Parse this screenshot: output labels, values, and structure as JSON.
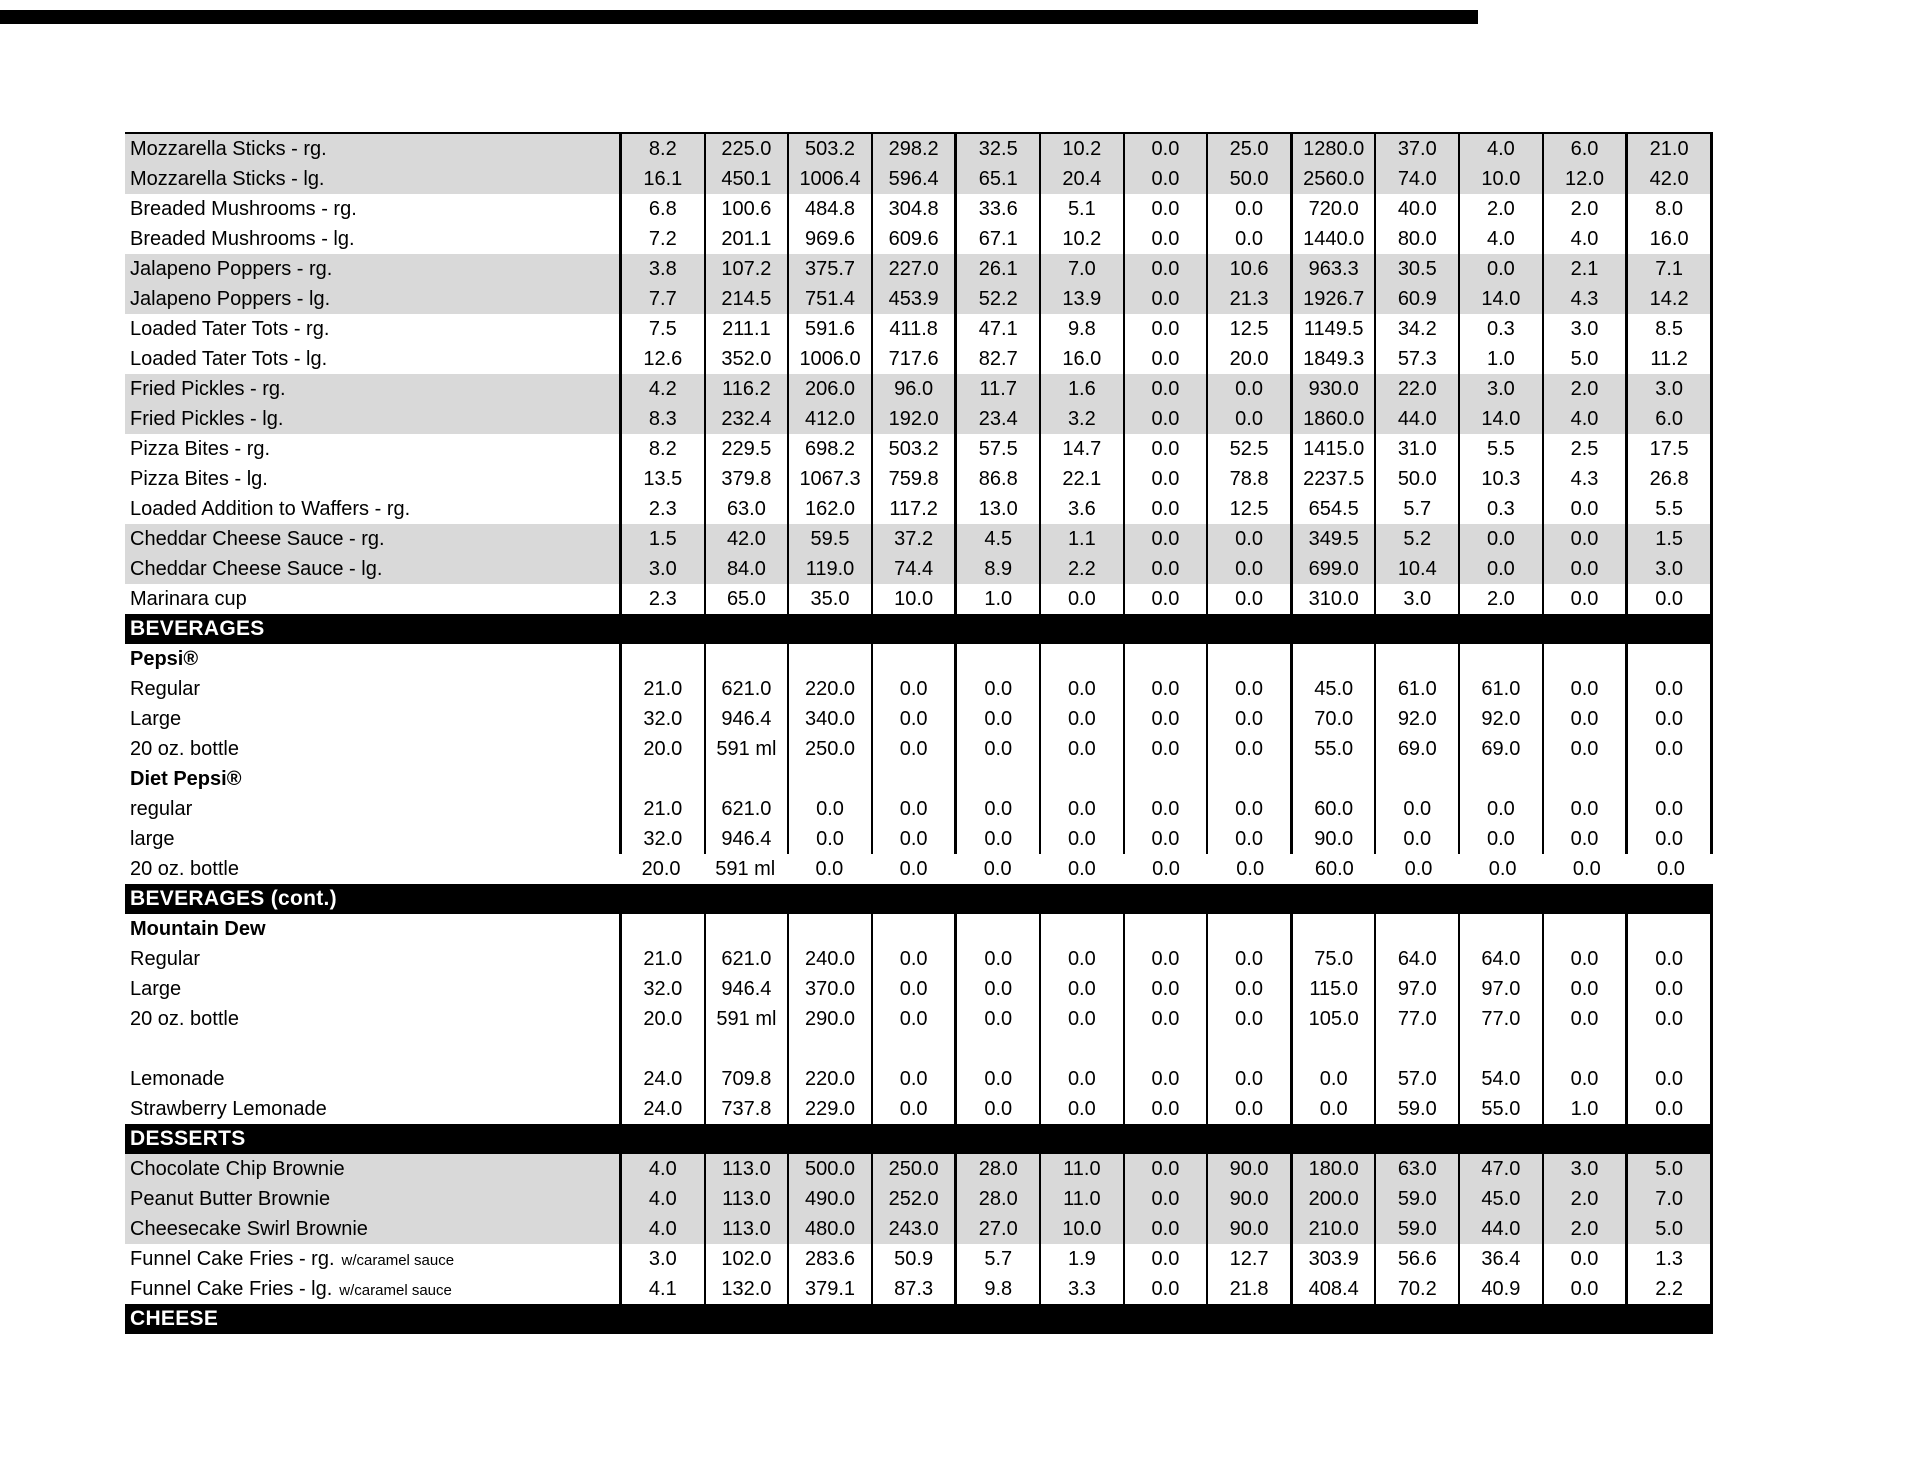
{
  "document": {
    "shade_color": "#d9d9d9",
    "section_header_bg": "#000000",
    "section_header_fg": "#ffffff",
    "top_cutoff_bar_present": true
  },
  "table": {
    "columns_count": 13,
    "rows": [
      {
        "type": "item",
        "name": "Mozzarella Sticks - rg.",
        "shaded": true,
        "cells": [
          "8.2",
          "225.0",
          "503.2",
          "298.2",
          "32.5",
          "10.2",
          "0.0",
          "25.0",
          "1280.0",
          "37.0",
          "4.0",
          "6.0",
          "21.0"
        ]
      },
      {
        "type": "item",
        "name": "Mozzarella Sticks - lg.",
        "shaded": true,
        "cells": [
          "16.1",
          "450.1",
          "1006.4",
          "596.4",
          "65.1",
          "20.4",
          "0.0",
          "50.0",
          "2560.0",
          "74.0",
          "10.0",
          "12.0",
          "42.0"
        ]
      },
      {
        "type": "item",
        "name": "Breaded Mushrooms - rg.",
        "shaded": false,
        "cells": [
          "6.8",
          "100.6",
          "484.8",
          "304.8",
          "33.6",
          "5.1",
          "0.0",
          "0.0",
          "720.0",
          "40.0",
          "2.0",
          "2.0",
          "8.0"
        ]
      },
      {
        "type": "item",
        "name": "Breaded Mushrooms - lg.",
        "shaded": false,
        "cells": [
          "7.2",
          "201.1",
          "969.6",
          "609.6",
          "67.1",
          "10.2",
          "0.0",
          "0.0",
          "1440.0",
          "80.0",
          "4.0",
          "4.0",
          "16.0"
        ]
      },
      {
        "type": "item",
        "name": "Jalapeno Poppers - rg.",
        "shaded": true,
        "cells": [
          "3.8",
          "107.2",
          "375.7",
          "227.0",
          "26.1",
          "7.0",
          "0.0",
          "10.6",
          "963.3",
          "30.5",
          "0.0",
          "2.1",
          "7.1"
        ]
      },
      {
        "type": "item",
        "name": "Jalapeno Poppers - lg.",
        "shaded": true,
        "cells": [
          "7.7",
          "214.5",
          "751.4",
          "453.9",
          "52.2",
          "13.9",
          "0.0",
          "21.3",
          "1926.7",
          "60.9",
          "14.0",
          "4.3",
          "14.2"
        ]
      },
      {
        "type": "item",
        "name": "Loaded Tater Tots - rg.",
        "shaded": false,
        "cells": [
          "7.5",
          "211.1",
          "591.6",
          "411.8",
          "47.1",
          "9.8",
          "0.0",
          "12.5",
          "1149.5",
          "34.2",
          "0.3",
          "3.0",
          "8.5"
        ]
      },
      {
        "type": "item",
        "name": "Loaded Tater Tots - lg.",
        "shaded": false,
        "cells": [
          "12.6",
          "352.0",
          "1006.0",
          "717.6",
          "82.7",
          "16.0",
          "0.0",
          "20.0",
          "1849.3",
          "57.3",
          "1.0",
          "5.0",
          "11.2"
        ]
      },
      {
        "type": "item",
        "name": "Fried Pickles - rg.",
        "shaded": true,
        "cells": [
          "4.2",
          "116.2",
          "206.0",
          "96.0",
          "11.7",
          "1.6",
          "0.0",
          "0.0",
          "930.0",
          "22.0",
          "3.0",
          "2.0",
          "3.0"
        ]
      },
      {
        "type": "item",
        "name": "Fried Pickles - lg.",
        "shaded": true,
        "cells": [
          "8.3",
          "232.4",
          "412.0",
          "192.0",
          "23.4",
          "3.2",
          "0.0",
          "0.0",
          "1860.0",
          "44.0",
          "14.0",
          "4.0",
          "6.0"
        ]
      },
      {
        "type": "item",
        "name": "Pizza Bites - rg.",
        "shaded": false,
        "cells": [
          "8.2",
          "229.5",
          "698.2",
          "503.2",
          "57.5",
          "14.7",
          "0.0",
          "52.5",
          "1415.0",
          "31.0",
          "5.5",
          "2.5",
          "17.5"
        ]
      },
      {
        "type": "item",
        "name": "Pizza Bites - lg.",
        "shaded": false,
        "cells": [
          "13.5",
          "379.8",
          "1067.3",
          "759.8",
          "86.8",
          "22.1",
          "0.0",
          "78.8",
          "2237.5",
          "50.0",
          "10.3",
          "4.3",
          "26.8"
        ]
      },
      {
        "type": "item",
        "name": "Loaded Addition to Waffers - rg.",
        "shaded": false,
        "cells": [
          "2.3",
          "63.0",
          "162.0",
          "117.2",
          "13.0",
          "3.6",
          "0.0",
          "12.5",
          "654.5",
          "5.7",
          "0.3",
          "0.0",
          "5.5"
        ]
      },
      {
        "type": "item",
        "name": "Cheddar Cheese Sauce - rg.",
        "shaded": true,
        "cells": [
          "1.5",
          "42.0",
          "59.5",
          "37.2",
          "4.5",
          "1.1",
          "0.0",
          "0.0",
          "349.5",
          "5.2",
          "0.0",
          "0.0",
          "1.5"
        ]
      },
      {
        "type": "item",
        "name": "Cheddar Cheese Sauce - lg.",
        "shaded": true,
        "cells": [
          "3.0",
          "84.0",
          "119.0",
          "74.4",
          "8.9",
          "2.2",
          "0.0",
          "0.0",
          "699.0",
          "10.4",
          "0.0",
          "0.0",
          "3.0"
        ]
      },
      {
        "type": "item",
        "name": "Marinara cup",
        "shaded": false,
        "cells": [
          "2.3",
          "65.0",
          "35.0",
          "10.0",
          "1.0",
          "0.0",
          "0.0",
          "0.0",
          "310.0",
          "3.0",
          "2.0",
          "0.0",
          "0.0"
        ]
      },
      {
        "type": "section",
        "label": "BEVERAGES"
      },
      {
        "type": "subheader",
        "name": "Pepsi®"
      },
      {
        "type": "item",
        "name": "Regular",
        "shaded": false,
        "cells": [
          "21.0",
          "621.0",
          "220.0",
          "0.0",
          "0.0",
          "0.0",
          "0.0",
          "0.0",
          "45.0",
          "61.0",
          "61.0",
          "0.0",
          "0.0"
        ]
      },
      {
        "type": "item",
        "name": "Large",
        "shaded": false,
        "cells": [
          "32.0",
          "946.4",
          "340.0",
          "0.0",
          "0.0",
          "0.0",
          "0.0",
          "0.0",
          "70.0",
          "92.0",
          "92.0",
          "0.0",
          "0.0"
        ]
      },
      {
        "type": "item",
        "name": "20 oz. bottle",
        "shaded": false,
        "cells": [
          "20.0",
          "591 ml",
          "250.0",
          "0.0",
          "0.0",
          "0.0",
          "0.0",
          "0.0",
          "55.0",
          "69.0",
          "69.0",
          "0.0",
          "0.0"
        ]
      },
      {
        "type": "subheader",
        "name": "Diet Pepsi®"
      },
      {
        "type": "item",
        "name": "regular",
        "shaded": false,
        "cells": [
          "21.0",
          "621.0",
          "0.0",
          "0.0",
          "0.0",
          "0.0",
          "0.0",
          "0.0",
          "60.0",
          "0.0",
          "0.0",
          "0.0",
          "0.0"
        ]
      },
      {
        "type": "item",
        "name": "large",
        "shaded": false,
        "cells": [
          "32.0",
          "946.4",
          "0.0",
          "0.0",
          "0.0",
          "0.0",
          "0.0",
          "0.0",
          "90.0",
          "0.0",
          "0.0",
          "0.0",
          "0.0"
        ]
      },
      {
        "type": "item",
        "name": "20 oz. bottle",
        "shaded": false,
        "borderless": true,
        "cells": [
          "20.0",
          "591 ml",
          "0.0",
          "0.0",
          "0.0",
          "0.0",
          "0.0",
          "0.0",
          "60.0",
          "0.0",
          "0.0",
          "0.0",
          "0.0"
        ]
      },
      {
        "type": "section",
        "label": "BEVERAGES (cont.)"
      },
      {
        "type": "subheader",
        "name": "Mountain Dew"
      },
      {
        "type": "item",
        "name": "Regular",
        "shaded": false,
        "cells": [
          "21.0",
          "621.0",
          "240.0",
          "0.0",
          "0.0",
          "0.0",
          "0.0",
          "0.0",
          "75.0",
          "64.0",
          "64.0",
          "0.0",
          "0.0"
        ]
      },
      {
        "type": "item",
        "name": "Large",
        "shaded": false,
        "cells": [
          "32.0",
          "946.4",
          "370.0",
          "0.0",
          "0.0",
          "0.0",
          "0.0",
          "0.0",
          "115.0",
          "97.0",
          "97.0",
          "0.0",
          "0.0"
        ]
      },
      {
        "type": "item",
        "name": "20 oz. bottle",
        "shaded": false,
        "cells": [
          "20.0",
          "591 ml",
          "290.0",
          "0.0",
          "0.0",
          "0.0",
          "0.0",
          "0.0",
          "105.0",
          "77.0",
          "77.0",
          "0.0",
          "0.0"
        ]
      },
      {
        "type": "blank"
      },
      {
        "type": "item",
        "name": "Lemonade",
        "shaded": false,
        "cells": [
          "24.0",
          "709.8",
          "220.0",
          "0.0",
          "0.0",
          "0.0",
          "0.0",
          "0.0",
          "0.0",
          "57.0",
          "54.0",
          "0.0",
          "0.0"
        ]
      },
      {
        "type": "item",
        "name": "Strawberry Lemonade",
        "shaded": false,
        "cells": [
          "24.0",
          "737.8",
          "229.0",
          "0.0",
          "0.0",
          "0.0",
          "0.0",
          "0.0",
          "0.0",
          "59.0",
          "55.0",
          "1.0",
          "0.0"
        ]
      },
      {
        "type": "section",
        "label": "DESSERTS"
      },
      {
        "type": "item",
        "name": "Chocolate Chip Brownie",
        "shaded": true,
        "cells": [
          "4.0",
          "113.0",
          "500.0",
          "250.0",
          "28.0",
          "11.0",
          "0.0",
          "90.0",
          "180.0",
          "63.0",
          "47.0",
          "3.0",
          "5.0"
        ]
      },
      {
        "type": "item",
        "name": "Peanut Butter Brownie",
        "shaded": true,
        "cells": [
          "4.0",
          "113.0",
          "490.0",
          "252.0",
          "28.0",
          "11.0",
          "0.0",
          "90.0",
          "200.0",
          "59.0",
          "45.0",
          "2.0",
          "7.0"
        ]
      },
      {
        "type": "item",
        "name": "Cheesecake Swirl Brownie",
        "shaded": true,
        "cells": [
          "4.0",
          "113.0",
          "480.0",
          "243.0",
          "27.0",
          "10.0",
          "0.0",
          "90.0",
          "210.0",
          "59.0",
          "44.0",
          "2.0",
          "5.0"
        ]
      },
      {
        "type": "item",
        "name": "Funnel Cake Fries - rg.",
        "suffix": "w/caramel sauce",
        "shaded": false,
        "cells": [
          "3.0",
          "102.0",
          "283.6",
          "50.9",
          "5.7",
          "1.9",
          "0.0",
          "12.7",
          "303.9",
          "56.6",
          "36.4",
          "0.0",
          "1.3"
        ]
      },
      {
        "type": "item",
        "name": "Funnel Cake Fries - lg.",
        "suffix": "w/caramel sauce",
        "shaded": false,
        "cells": [
          "4.1",
          "132.0",
          "379.1",
          "87.3",
          "9.8",
          "3.3",
          "0.0",
          "21.8",
          "408.4",
          "70.2",
          "40.9",
          "0.0",
          "2.2"
        ]
      },
      {
        "type": "section",
        "label": "CHEESE"
      }
    ]
  }
}
